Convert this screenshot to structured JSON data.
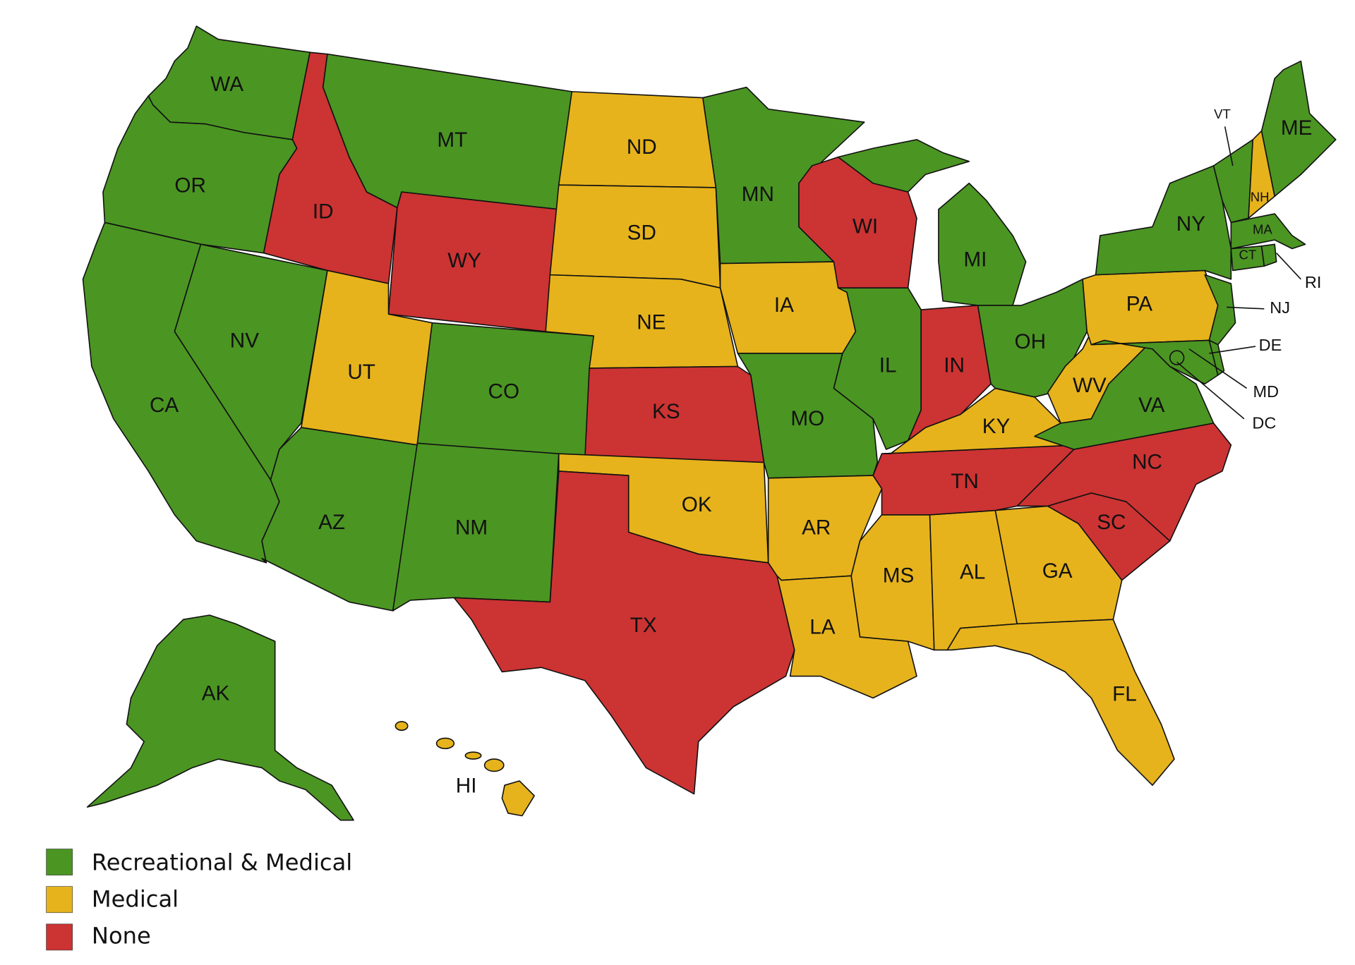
{
  "legend": [
    {
      "label": "Recreational & Medical",
      "color": "#4b9523"
    },
    {
      "label": "Medical",
      "color": "#e6b31c"
    },
    {
      "label": "None",
      "color": "#cc3333"
    }
  ],
  "states": [
    {
      "label": "WA",
      "color": "#4b9523"
    },
    {
      "label": "OR",
      "color": "#4b9523"
    },
    {
      "label": "CA",
      "color": "#4b9523"
    },
    {
      "label": "NV",
      "color": "#4b9523"
    },
    {
      "label": "ID",
      "color": "#cc3333"
    },
    {
      "label": "MT",
      "color": "#4b9523"
    },
    {
      "label": "WY",
      "color": "#cc3333"
    },
    {
      "label": "UT",
      "color": "#e6b31c"
    },
    {
      "label": "AZ",
      "color": "#4b9523"
    },
    {
      "label": "CO",
      "color": "#4b9523"
    },
    {
      "label": "NM",
      "color": "#4b9523"
    },
    {
      "label": "ND",
      "color": "#e6b31c"
    },
    {
      "label": "SD",
      "color": "#e6b31c"
    },
    {
      "label": "NE",
      "color": "#e6b31c"
    },
    {
      "label": "KS",
      "color": "#cc3333"
    },
    {
      "label": "OK",
      "color": "#e6b31c"
    },
    {
      "label": "TX",
      "color": "#cc3333"
    },
    {
      "label": "MN",
      "color": "#4b9523"
    },
    {
      "label": "IA",
      "color": "#e6b31c"
    },
    {
      "label": "MO",
      "color": "#4b9523"
    },
    {
      "label": "AR",
      "color": "#e6b31c"
    },
    {
      "label": "LA",
      "color": "#e6b31c"
    },
    {
      "label": "MS",
      "color": "#e6b31c"
    },
    {
      "label": "AL",
      "color": "#e6b31c"
    },
    {
      "label": "GA",
      "color": "#e6b31c"
    },
    {
      "label": "FL",
      "color": "#e6b31c"
    },
    {
      "label": "SC",
      "color": "#cc3333"
    },
    {
      "label": "NC",
      "color": "#cc3333"
    },
    {
      "label": "TN",
      "color": "#cc3333"
    },
    {
      "label": "KY",
      "color": "#e6b31c"
    },
    {
      "label": "WI",
      "color": "#cc3333"
    },
    {
      "label": "IL",
      "color": "#4b9523"
    },
    {
      "label": "IN",
      "color": "#cc3333"
    },
    {
      "label": "MI",
      "color": "#4b9523"
    },
    {
      "label": "OH",
      "color": "#4b9523"
    },
    {
      "label": "WV",
      "color": "#e6b31c"
    },
    {
      "label": "VA",
      "color": "#4b9523"
    },
    {
      "label": "PA",
      "color": "#e6b31c"
    },
    {
      "label": "NY",
      "color": "#4b9523"
    },
    {
      "label": "NJ",
      "color": "#4b9523"
    },
    {
      "label": "MD",
      "color": "#4b9523"
    },
    {
      "label": "DE",
      "color": "#4b9523"
    },
    {
      "label": "VT",
      "color": "#4b9523"
    },
    {
      "label": "NH",
      "color": "#e6b31c"
    },
    {
      "label": "ME",
      "color": "#4b9523"
    },
    {
      "label": "MA",
      "color": "#4b9523"
    },
    {
      "label": "CT",
      "color": "#4b9523"
    },
    {
      "label": "RI",
      "color": "#4b9523"
    },
    {
      "label": "DC",
      "color": "#4b9523"
    },
    {
      "label": "AK",
      "color": "#4b9523"
    },
    {
      "label": "HI",
      "color": "#e6b31c"
    }
  ]
}
